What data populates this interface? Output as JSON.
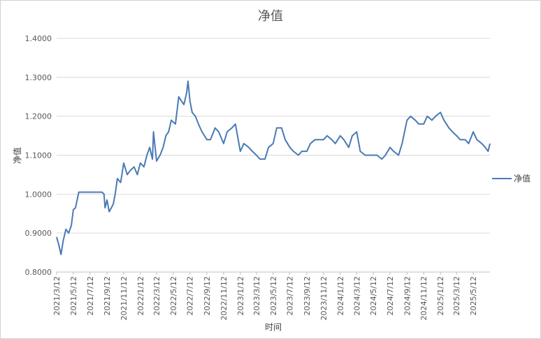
{
  "chart_data": {
    "type": "line",
    "title": "净值",
    "xlabel": "时间",
    "ylabel": "净值",
    "ylim": [
      0.8,
      1.4
    ],
    "yticks": [
      "0.8000",
      "0.9000",
      "1.0000",
      "1.1000",
      "1.2000",
      "1.3000",
      "1.4000"
    ],
    "grid": "horizontal",
    "legend_position": "right",
    "series": [
      {
        "name": "净值",
        "color": "#4a7ab5",
        "x": [
          "2021/3/12",
          "2021/3/20",
          "2021/3/28",
          "2021/4/5",
          "2021/4/15",
          "2021/4/25",
          "2021/5/5",
          "2021/5/12",
          "2021/5/20",
          "2021/6/1",
          "2021/7/1",
          "2021/8/1",
          "2021/8/25",
          "2021/9/1",
          "2021/9/5",
          "2021/9/12",
          "2021/9/20",
          "2021/9/28",
          "2021/10/5",
          "2021/10/12",
          "2021/10/20",
          "2021/11/1",
          "2021/11/12",
          "2021/11/25",
          "2021/12/5",
          "2021/12/20",
          "2022/1/1",
          "2022/1/12",
          "2022/1/25",
          "2022/2/5",
          "2022/2/15",
          "2022/2/25",
          "2022/3/1",
          "2022/3/12",
          "2022/3/25",
          "2022/4/5",
          "2022/4/15",
          "2022/4/25",
          "2022/5/5",
          "2022/5/12",
          "2022/5/20",
          "2022/6/1",
          "2022/6/10",
          "2022/6/20",
          "2022/6/30",
          "2022/7/5",
          "2022/7/12",
          "2022/7/20",
          "2022/8/1",
          "2022/8/12",
          "2022/8/25",
          "2022/9/12",
          "2022/9/25",
          "2022/10/12",
          "2022/10/25",
          "2022/11/12",
          "2022/11/25",
          "2022/12/12",
          "2022/12/25",
          "2023/1/12",
          "2023/1/25",
          "2023/2/12",
          "2023/2/25",
          "2023/3/12",
          "2023/3/25",
          "2023/4/12",
          "2023/4/25",
          "2023/5/12",
          "2023/5/25",
          "2023/6/12",
          "2023/6/25",
          "2023/7/12",
          "2023/7/25",
          "2023/8/12",
          "2023/8/25",
          "2023/9/12",
          "2023/9/25",
          "2023/10/12",
          "2023/10/25",
          "2023/11/12",
          "2023/11/25",
          "2023/12/12",
          "2023/12/25",
          "2024/1/12",
          "2024/1/25",
          "2024/2/12",
          "2024/2/25",
          "2024/3/12",
          "2024/3/25",
          "2024/4/12",
          "2024/4/25",
          "2024/5/12",
          "2024/5/25",
          "2024/6/12",
          "2024/6/25",
          "2024/7/12",
          "2024/7/25",
          "2024/8/12",
          "2024/8/25",
          "2024/9/12",
          "2024/9/25",
          "2024/10/12",
          "2024/10/25",
          "2024/11/12",
          "2024/11/25",
          "2024/12/12",
          "2024/12/25",
          "2025/1/12",
          "2025/1/25",
          "2025/2/12",
          "2025/2/25",
          "2025/3/12",
          "2025/3/25",
          "2025/4/12",
          "2025/4/25",
          "2025/5/12",
          "2025/5/25",
          "2025/6/12",
          "2025/6/25",
          "2025/7/5",
          "2025/7/12"
        ],
        "y": [
          0.89,
          0.87,
          0.845,
          0.88,
          0.91,
          0.9,
          0.92,
          0.96,
          0.965,
          1.005,
          1.005,
          1.005,
          1.005,
          1.0,
          0.965,
          0.985,
          0.955,
          0.965,
          0.975,
          1.0,
          1.04,
          1.03,
          1.08,
          1.05,
          1.06,
          1.07,
          1.05,
          1.08,
          1.07,
          1.1,
          1.12,
          1.09,
          1.16,
          1.085,
          1.1,
          1.12,
          1.15,
          1.16,
          1.19,
          1.185,
          1.18,
          1.25,
          1.24,
          1.23,
          1.26,
          1.29,
          1.24,
          1.21,
          1.2,
          1.18,
          1.16,
          1.14,
          1.14,
          1.17,
          1.16,
          1.13,
          1.16,
          1.17,
          1.18,
          1.11,
          1.13,
          1.12,
          1.11,
          1.1,
          1.09,
          1.09,
          1.12,
          1.13,
          1.17,
          1.17,
          1.14,
          1.12,
          1.11,
          1.1,
          1.11,
          1.11,
          1.13,
          1.14,
          1.14,
          1.14,
          1.15,
          1.14,
          1.13,
          1.15,
          1.14,
          1.12,
          1.15,
          1.16,
          1.11,
          1.1,
          1.1,
          1.1,
          1.1,
          1.09,
          1.1,
          1.12,
          1.11,
          1.1,
          1.13,
          1.19,
          1.2,
          1.19,
          1.18,
          1.18,
          1.2,
          1.19,
          1.2,
          1.21,
          1.19,
          1.17,
          1.16,
          1.15,
          1.14,
          1.14,
          1.13,
          1.16,
          1.14,
          1.13,
          1.12,
          1.11,
          1.13
        ]
      }
    ],
    "x_tick_labels": [
      "2021/3/12",
      "2021/5/12",
      "2021/7/12",
      "2021/9/12",
      "2021/11/12",
      "2022/1/12",
      "2022/3/12",
      "2022/5/12",
      "2022/7/12",
      "2022/9/12",
      "2022/11/12",
      "2023/1/12",
      "2023/3/12",
      "2023/5/12",
      "2023/7/12",
      "2023/9/12",
      "2023/11/12",
      "2024/1/12",
      "2024/3/12",
      "2024/5/12",
      "2024/7/12",
      "2024/9/12",
      "2024/11/12",
      "2025/1/12",
      "2025/3/12",
      "2025/5/12"
    ]
  }
}
